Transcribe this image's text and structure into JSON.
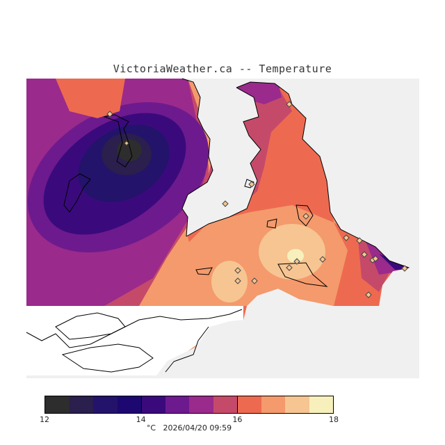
{
  "title": "VictoriaWeather.ca -- Temperature",
  "legend": {
    "colors": [
      "#2d2d2d",
      "#2a1f4d",
      "#23136a",
      "#1d0770",
      "#3a0a7c",
      "#6d1a8e",
      "#9a2a8c",
      "#c54a6a",
      "#ed6a50",
      "#f49a6c",
      "#f6c592",
      "#f7f0bc"
    ],
    "ticks": [
      "12",
      "14",
      "16",
      "18"
    ],
    "tick_values": [
      12,
      14,
      16,
      18
    ],
    "range": [
      12,
      18
    ]
  },
  "units": "°C",
  "timestamp": "2026/04/20 09:59",
  "colors": {
    "land_background": "#f0f0f0",
    "base_warm": "#f49a6c",
    "contour_mid": "#ed6a50",
    "contour_rose": "#c54a6a",
    "contour_purple": "#9a2a8c",
    "contour_violet": "#6d1a8e",
    "contour_indigo": "#3a0a7c",
    "contour_deep": "#23136a",
    "contour_dark": "#2a1f4d",
    "warm_peak": "#f6c592",
    "hot_peak": "#f7f0bc"
  }
}
